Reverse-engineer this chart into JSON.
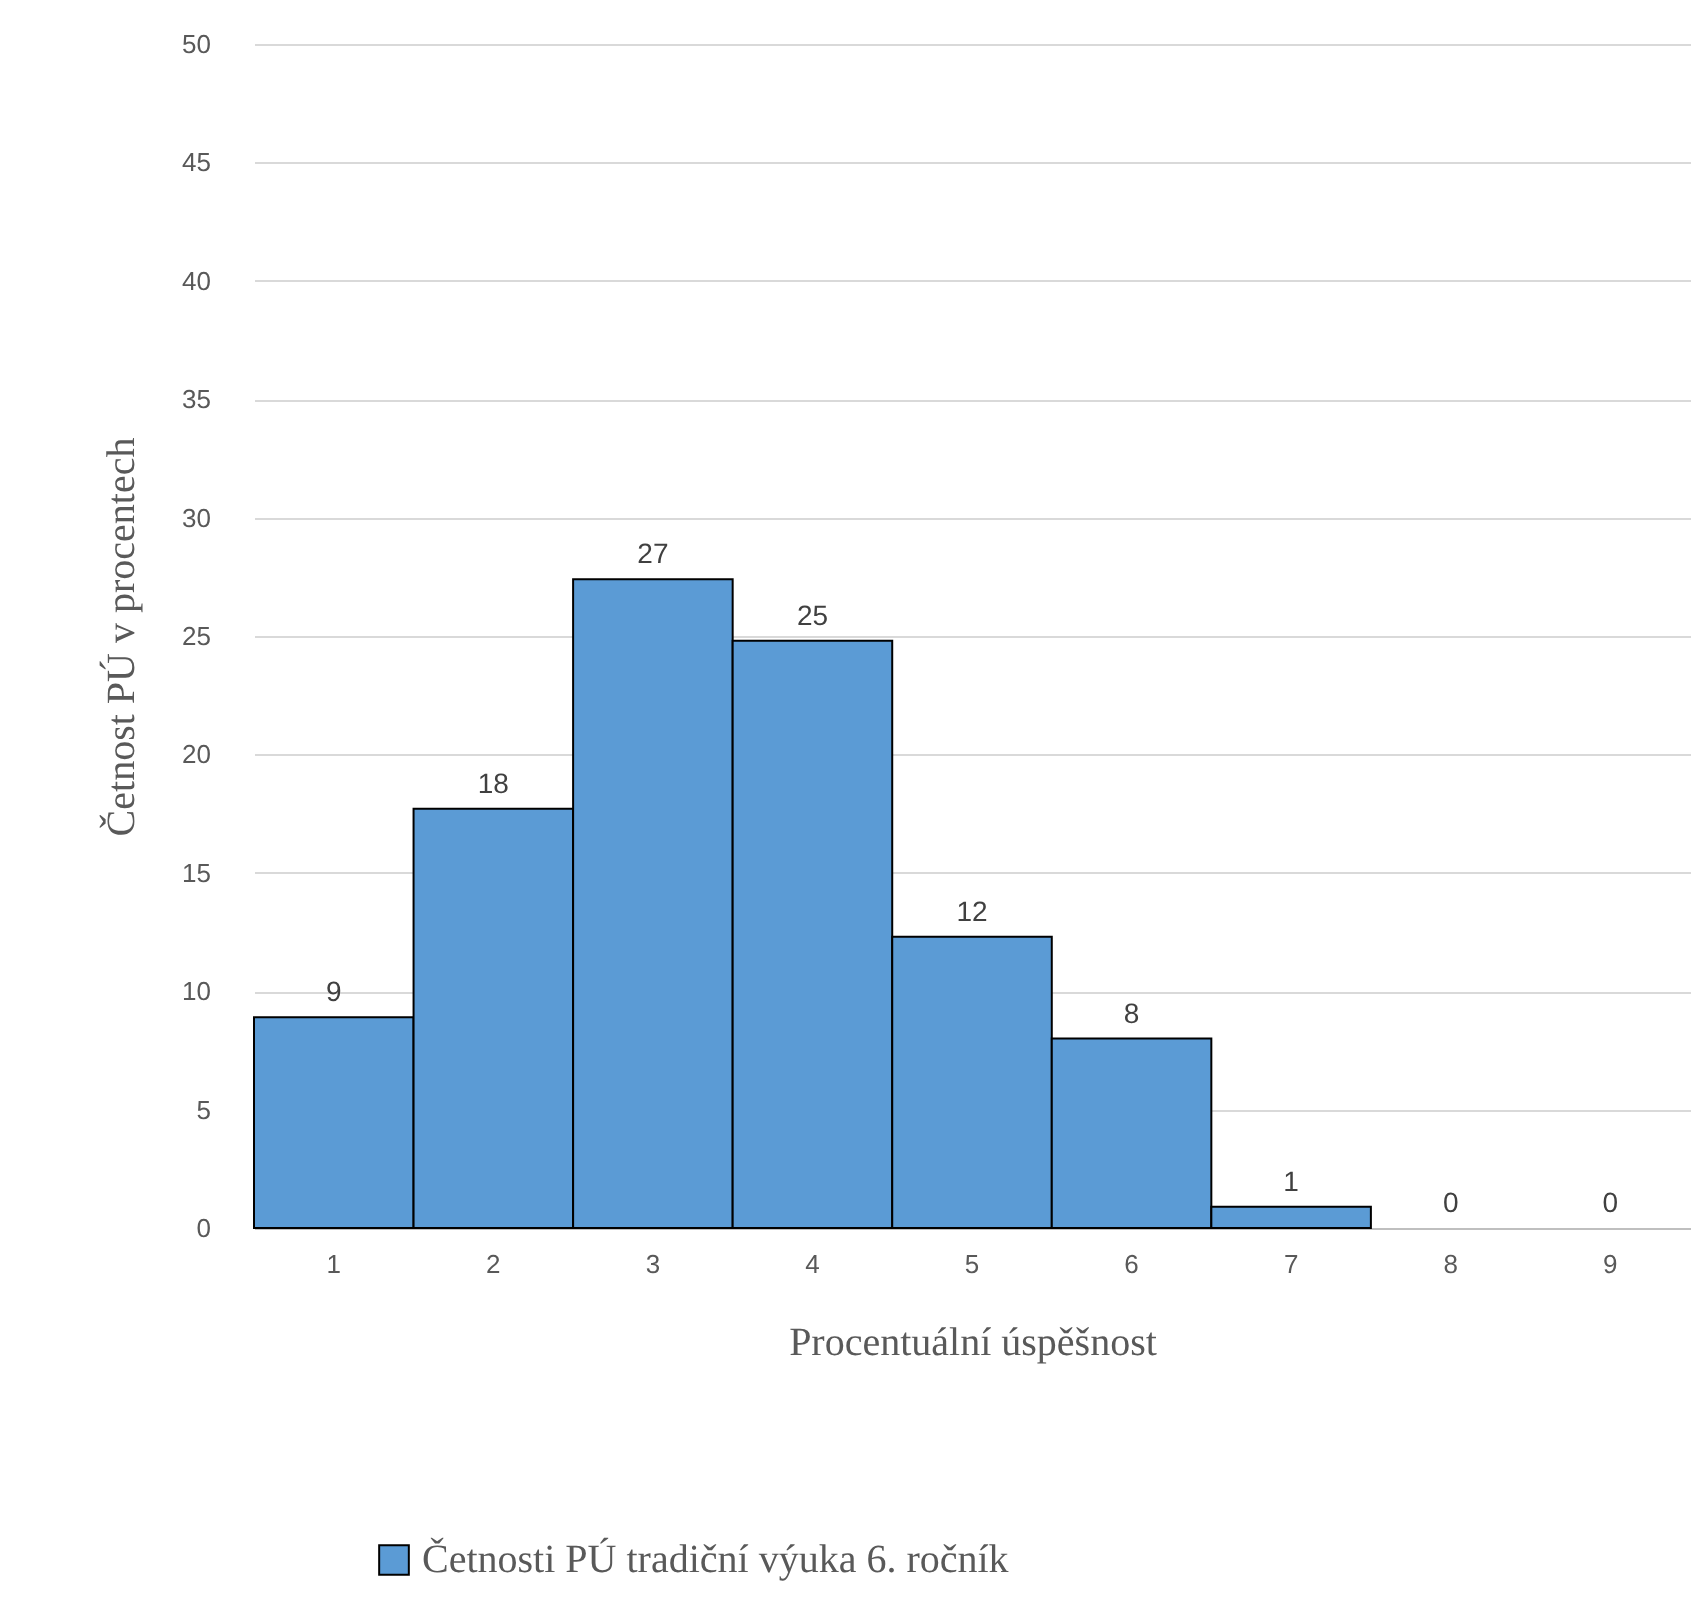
{
  "chart_data": {
    "type": "bar",
    "categories": [
      "1",
      "2",
      "3",
      "4",
      "5",
      "6",
      "7",
      "8",
      "9"
    ],
    "series": [
      {
        "name": "Četnosti PÚ tradiční výuka 6. ročník",
        "color": "#5b9bd5",
        "values": [
          8.9,
          17.7,
          27.4,
          24.8,
          12.3,
          8.0,
          0.9,
          0,
          0
        ],
        "value_labels": [
          "9",
          "18",
          "27",
          "25",
          "12",
          "8",
          "1",
          "0",
          "0"
        ]
      }
    ],
    "xlabel": "Procentuální úspěšnost",
    "ylabel": "Četnost PÚ v procentech",
    "ylim": [
      0,
      50
    ],
    "yticks": [
      0,
      5,
      10,
      15,
      20,
      25,
      30,
      35,
      40,
      45,
      50
    ],
    "grid": "y",
    "legend": "bottom"
  }
}
